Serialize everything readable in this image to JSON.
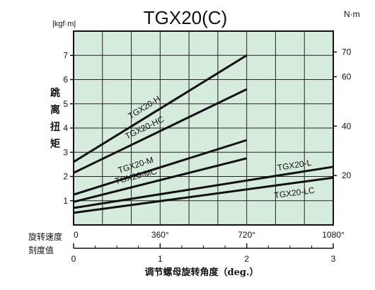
{
  "chart_data": {
    "type": "line",
    "title": "TGX20(C)",
    "left_unit": "|kgf·m|",
    "right_unit": "N·m",
    "ylabel_chars": [
      "跳",
      "离",
      "扭",
      "矩"
    ],
    "xlabel": "调节螺母旋转角度（deg.）",
    "scale_labels": [
      "旋转速度",
      "刻度值"
    ],
    "ylim": [
      0,
      8
    ],
    "xlim": [
      0,
      1080
    ],
    "x_ticks": [
      0,
      360,
      720,
      1080
    ],
    "x_tick_labels": [
      "0",
      "360°",
      "720°",
      "1080°"
    ],
    "left_ticks": [
      1,
      2,
      3,
      4,
      5,
      6,
      7
    ],
    "left_tick_labels": [
      "1",
      "2",
      "3",
      "4",
      "5",
      "6",
      "7"
    ],
    "right_ticks": [
      20,
      40,
      60,
      70
    ],
    "right_tick_labels": [
      "20",
      "40",
      "60",
      "70"
    ],
    "rev_ticks": [
      0,
      1,
      2,
      3
    ],
    "rev_tick_labels": [
      "0",
      "1",
      "2",
      "3"
    ],
    "grid": true,
    "plot_background": "#d6ebdc",
    "line_color": "#111111",
    "series": [
      {
        "name": "TGX20-H",
        "x": [
          0,
          720
        ],
        "y": [
          2.6,
          7.0
        ]
      },
      {
        "name": "TGX20-HC",
        "x": [
          0,
          720
        ],
        "y": [
          2.15,
          5.6
        ]
      },
      {
        "name": "TGX20-M",
        "x": [
          0,
          720
        ],
        "y": [
          1.25,
          3.5
        ]
      },
      {
        "name": "TGX20-MC",
        "x": [
          0,
          720
        ],
        "y": [
          0.95,
          2.75
        ]
      },
      {
        "name": "TGX20-L",
        "x": [
          0,
          1080
        ],
        "y": [
          0.7,
          2.4
        ]
      },
      {
        "name": "TGX20-LC",
        "x": [
          0,
          1080
        ],
        "y": [
          0.5,
          1.95
        ]
      }
    ]
  }
}
